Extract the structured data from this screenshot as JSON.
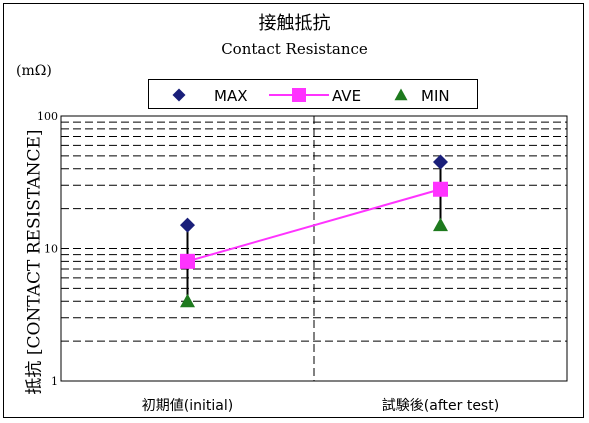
{
  "chart_data": {
    "type": "line",
    "title": "接触抵抗",
    "subtitle": "Contact Resistance",
    "unit_label": "(mΩ)",
    "ylabel": "抵抗 [CONTACT RESISTANCE]",
    "yscale": "log",
    "ylim": [
      1,
      100
    ],
    "ytick_labels": [
      "1",
      "10",
      "100"
    ],
    "grid": true,
    "legend_position": "top",
    "categories": [
      "初期値(initial)",
      "試験後(after test)"
    ],
    "series": [
      {
        "name": "MAX",
        "values": [
          15,
          45
        ],
        "marker": "diamond",
        "color": "#1a1f7a"
      },
      {
        "name": "AVE",
        "values": [
          8,
          28
        ],
        "marker": "square",
        "color": "#ff33ff"
      },
      {
        "name": "MIN",
        "values": [
          4,
          15
        ],
        "marker": "triangle",
        "color": "#1e7a1e"
      }
    ]
  }
}
